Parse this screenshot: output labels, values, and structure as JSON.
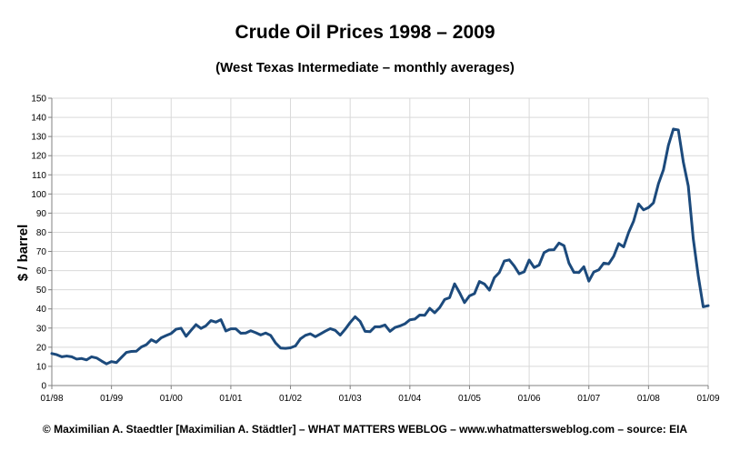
{
  "chart_data": {
    "type": "line",
    "title": "Crude Oil Prices 1998 – 2009",
    "subtitle": "(West Texas Intermediate – monthly averages)",
    "ylabel": "$ / barrel",
    "xlabel": "",
    "ylim": [
      0,
      150
    ],
    "ytick_step": 10,
    "y_ticks": [
      "0",
      "10",
      "20",
      "30",
      "40",
      "50",
      "60",
      "70",
      "80",
      "90",
      "100",
      "110",
      "120",
      "130",
      "140",
      "150"
    ],
    "x_ticks": [
      "01/98",
      "01/99",
      "01/00",
      "01/01",
      "01/02",
      "01/03",
      "01/04",
      "01/05",
      "01/06",
      "01/07",
      "01/08",
      "01/09"
    ],
    "grid": true,
    "legend": "none",
    "line_color": "#1c4a7c",
    "series": [
      {
        "start": "1998-01",
        "values": [
          16.7,
          16.1,
          15.0,
          15.4,
          15.0,
          13.8,
          14.1,
          13.4,
          15.0,
          14.4,
          12.8,
          11.3,
          12.5,
          12.0,
          14.7,
          17.3,
          17.8,
          17.9,
          20.1,
          21.3,
          23.9,
          22.6,
          24.9,
          26.1,
          27.2,
          29.4,
          29.9,
          25.7,
          28.8,
          31.8,
          29.8,
          31.2,
          33.9,
          33.1,
          34.4,
          28.5,
          29.6,
          29.6,
          27.3,
          27.4,
          28.6,
          27.6,
          26.4,
          27.4,
          26.2,
          22.2,
          19.6,
          19.4,
          19.7,
          20.7,
          24.4,
          26.2,
          27.0,
          25.5,
          26.9,
          28.4,
          29.7,
          28.8,
          26.3,
          29.4,
          32.9,
          35.9,
          33.5,
          28.3,
          28.1,
          30.7,
          30.7,
          31.6,
          28.3,
          30.3,
          31.1,
          32.2,
          34.3,
          34.7,
          36.8,
          36.7,
          40.3,
          38.0,
          40.7,
          44.9,
          45.9,
          53.1,
          48.5,
          43.3,
          46.8,
          48.0,
          54.3,
          53.0,
          49.8,
          56.3,
          59.0,
          65.0,
          65.6,
          62.4,
          58.3,
          59.4,
          65.5,
          61.6,
          62.9,
          69.4,
          70.8,
          70.9,
          74.4,
          73.0,
          63.9,
          59.1,
          59.0,
          62.0,
          54.5,
          59.3,
          60.4,
          63.9,
          63.5,
          67.5,
          74.1,
          72.4,
          79.9,
          85.8,
          94.8,
          91.7,
          92.9,
          95.4,
          105.4,
          112.6,
          125.4,
          133.9,
          133.4,
          116.7,
          104.1,
          76.6,
          57.3,
          41.1,
          41.7
        ]
      }
    ]
  },
  "footer": "© Maximilian A. Staedtler [Maximilian A. Städtler] – WHAT MATTERS WEBLOG – www.whatmattersweblog.com – source: EIA"
}
